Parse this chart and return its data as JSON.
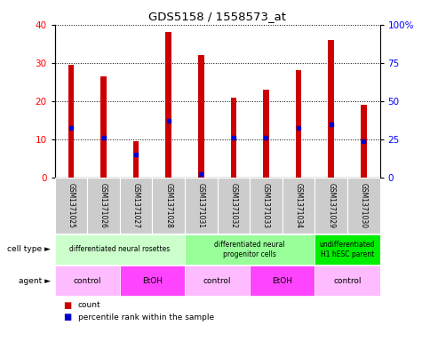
{
  "title": "GDS5158 / 1558573_at",
  "samples": [
    "GSM1371025",
    "GSM1371026",
    "GSM1371027",
    "GSM1371028",
    "GSM1371031",
    "GSM1371032",
    "GSM1371033",
    "GSM1371034",
    "GSM1371029",
    "GSM1371030"
  ],
  "counts": [
    29.5,
    26.5,
    9.5,
    38.0,
    32.0,
    21.0,
    23.0,
    28.0,
    36.0,
    19.0
  ],
  "percentile_ranks": [
    32.5,
    26.0,
    15.0,
    37.5,
    2.5,
    26.0,
    26.0,
    32.5,
    35.0,
    24.0
  ],
  "bar_color": "#cc0000",
  "dot_color": "#0000cc",
  "ylim_left": [
    0,
    40
  ],
  "ylim_right": [
    0,
    100
  ],
  "yticks_left": [
    0,
    10,
    20,
    30,
    40
  ],
  "yticks_right": [
    0,
    25,
    50,
    75,
    100
  ],
  "yticklabels_right": [
    "0",
    "25",
    "50",
    "75",
    "100%"
  ],
  "cell_type_groups": [
    {
      "label": "differentiated neural rosettes",
      "cols": [
        0,
        3
      ],
      "color": "#ccffcc"
    },
    {
      "label": "differentiated neural\nprogenitor cells",
      "cols": [
        4,
        7
      ],
      "color": "#99ff99"
    },
    {
      "label": "undifferentiated\nH1 hESC parent",
      "cols": [
        8,
        9
      ],
      "color": "#00ee00"
    }
  ],
  "agent_groups": [
    {
      "label": "control",
      "cols": [
        0,
        1
      ],
      "color": "#ffbbff"
    },
    {
      "label": "EtOH",
      "cols": [
        2,
        3
      ],
      "color": "#ff44ff"
    },
    {
      "label": "control",
      "cols": [
        4,
        5
      ],
      "color": "#ffbbff"
    },
    {
      "label": "EtOH",
      "cols": [
        6,
        7
      ],
      "color": "#ff44ff"
    },
    {
      "label": "control",
      "cols": [
        8,
        9
      ],
      "color": "#ffbbff"
    }
  ],
  "bar_width": 0.18,
  "sample_label_color": "#cccccc",
  "legend_count_color": "#cc0000",
  "legend_pct_color": "#0000cc"
}
